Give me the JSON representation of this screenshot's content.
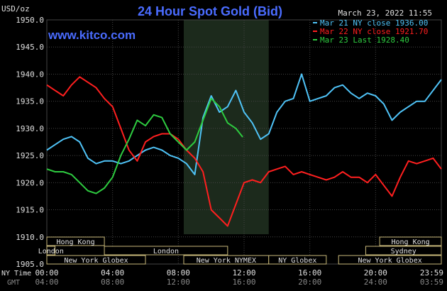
{
  "chart_data": {
    "type": "line",
    "title": "24 Hour Spot Gold (Bid)",
    "site": "www.kitco.com",
    "timestamp": "March 23, 2022 11:55",
    "ylabel": "USD/oz",
    "ylim": [
      1905.0,
      1950.0
    ],
    "y_ticks": [
      "1905.0",
      "1910.0",
      "1915.0",
      "1920.0",
      "1925.0",
      "1930.0",
      "1935.0",
      "1940.0",
      "1945.0",
      "1950.0"
    ],
    "x_axis": {
      "row1_label": "NY Time",
      "row2_label": "GMT",
      "ny_ticks": [
        "00:00",
        "04:00",
        "08:00",
        "12:00",
        "16:00",
        "20:00",
        "23:59"
      ],
      "gmt_ticks": [
        "04:00",
        "08:00",
        "12:00",
        "16:00",
        "20:00",
        "24:00",
        "03:59"
      ],
      "range_hours": [
        0,
        24
      ]
    },
    "legend_position": "top-right",
    "grid": true,
    "series": [
      {
        "name": "Mar 21 NY close 1936.00",
        "color": "#4fc3f7",
        "x": [
          0,
          0.5,
          1,
          1.5,
          2,
          2.5,
          3,
          3.5,
          4,
          4.5,
          5,
          5.5,
          6,
          6.5,
          7,
          7.5,
          8,
          8.5,
          9,
          9.5,
          10,
          10.5,
          11,
          11.5,
          12,
          12.5,
          13,
          13.5,
          14,
          14.5,
          15,
          15.5,
          16,
          16.5,
          17,
          17.5,
          18,
          18.5,
          19,
          19.5,
          20,
          20.5,
          21,
          21.5,
          22,
          22.5,
          23,
          23.5,
          24
        ],
        "values": [
          1926.0,
          1927.0,
          1928.0,
          1928.5,
          1927.5,
          1924.5,
          1923.5,
          1924.0,
          1924.0,
          1923.5,
          1924.0,
          1925.0,
          1926.0,
          1926.5,
          1926.0,
          1925.0,
          1924.5,
          1923.5,
          1921.5,
          1932.0,
          1936.0,
          1933.0,
          1934.0,
          1937.0,
          1933.0,
          1931.0,
          1928.0,
          1929.0,
          1933.0,
          1935.0,
          1935.5,
          1940.0,
          1935.0,
          1935.5,
          1936.0,
          1937.5,
          1938.0,
          1936.5,
          1935.5,
          1936.5,
          1936.0,
          1934.5,
          1931.5,
          1933.0,
          1934.0,
          1935.0,
          1935.0,
          1937.0,
          1939.0
        ]
      },
      {
        "name": "Mar 22 NY close 1921.70",
        "color": "#ff1f1f",
        "x": [
          0,
          0.5,
          1,
          1.5,
          2,
          2.5,
          3,
          3.5,
          4,
          4.5,
          5,
          5.5,
          6,
          6.5,
          7,
          7.5,
          8,
          8.5,
          9,
          9.5,
          10,
          10.5,
          11,
          11.5,
          12,
          12.5,
          13,
          13.5,
          14,
          14.5,
          15,
          15.5,
          16,
          16.5,
          17,
          17.5,
          18,
          18.5,
          19,
          19.5,
          20,
          20.5,
          21,
          21.5,
          22,
          22.5,
          23,
          23.5,
          24
        ],
        "values": [
          1938.0,
          1937.0,
          1936.0,
          1938.0,
          1939.5,
          1938.5,
          1937.5,
          1935.5,
          1934.0,
          1930.0,
          1926.0,
          1924.0,
          1927.5,
          1928.5,
          1929.0,
          1929.0,
          1928.0,
          1926.0,
          1924.5,
          1922.0,
          1915.0,
          1913.5,
          1912.0,
          1916.0,
          1920.0,
          1920.5,
          1920.0,
          1922.0,
          1922.5,
          1923.0,
          1921.5,
          1922.0,
          1921.5,
          1921.0,
          1920.5,
          1921.0,
          1922.0,
          1921.0,
          1921.0,
          1920.0,
          1921.5,
          1919.5,
          1917.5,
          1921.0,
          1924.0,
          1923.5,
          1924.0,
          1924.5,
          1922.5
        ]
      },
      {
        "name": "Mar 23 Last 1928.40",
        "color": "#2ecc40",
        "x": [
          0,
          0.5,
          1,
          1.5,
          2,
          2.5,
          3,
          3.5,
          4,
          4.5,
          5,
          5.5,
          6,
          6.5,
          7,
          7.5,
          8,
          8.5,
          9,
          9.5,
          10,
          10.5,
          11,
          11.5,
          11.92
        ],
        "values": [
          1922.5,
          1922.0,
          1922.0,
          1921.5,
          1920.0,
          1918.5,
          1918.0,
          1919.0,
          1921.0,
          1925.0,
          1928.0,
          1931.5,
          1930.5,
          1932.5,
          1932.0,
          1929.0,
          1927.5,
          1926.0,
          1927.5,
          1931.5,
          1935.5,
          1934.0,
          1931.0,
          1930.0,
          1928.4
        ]
      }
    ],
    "sessions": {
      "shaded_range_hours": [
        8.33,
        13.5
      ],
      "rows": [
        [
          {
            "label": "Hong Kong",
            "start": 0,
            "end": 3.5
          },
          {
            "label": "Hong Kong",
            "start": 20.25,
            "end": 24
          }
        ],
        [
          {
            "label": "London",
            "start": 0,
            "end": 0.5
          },
          {
            "label": "London",
            "start": 3.5,
            "end": 11.0
          },
          {
            "label": "Sydney",
            "start": 19.4,
            "end": 24
          }
        ],
        [
          {
            "label": "New York Globex",
            "start": 0,
            "end": 6.0
          },
          {
            "label": "New York NYMEX",
            "start": 8.33,
            "end": 13.5
          },
          {
            "label": "NY Globex",
            "start": 13.5,
            "end": 17.0
          },
          {
            "label": "New York Globex",
            "start": 17.75,
            "end": 24
          }
        ]
      ]
    }
  }
}
